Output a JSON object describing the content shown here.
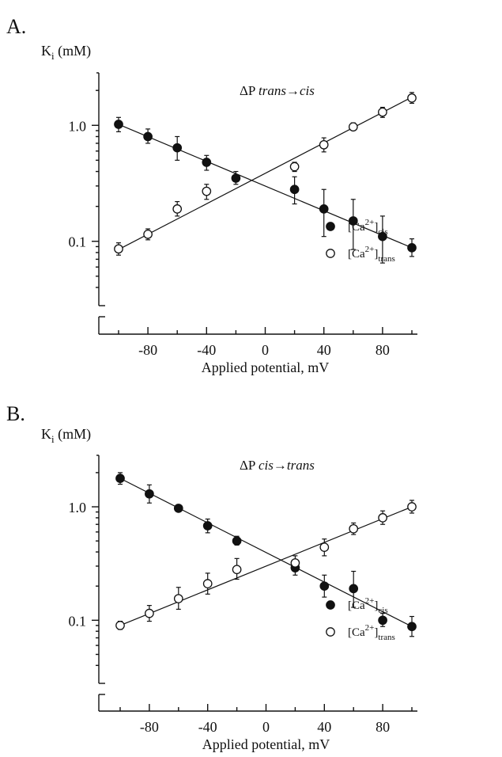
{
  "chart_data": [
    {
      "type": "scatter",
      "panel_label": "A.",
      "ylabel_main": "K",
      "ylabel_sub": "i",
      "ylabel_unit": "(mM)",
      "xlabel": "Applied potential, mV",
      "title": "ΔP trans→cis",
      "title_prefix": "ΔP ",
      "title_italic": "trans→cis",
      "yscale": "log",
      "ylim": [
        0.0316,
        2.5
      ],
      "xlim": [
        -110,
        110
      ],
      "xticks": [
        -80,
        -40,
        0,
        40,
        80
      ],
      "xtick_labels": [
        "-80",
        "-40",
        "0",
        "40",
        "80"
      ],
      "yticks": [
        1.0,
        0.1
      ],
      "ytick_labels": [
        "1.0",
        "0.1"
      ],
      "legend_position": "lower-right",
      "series": [
        {
          "key": "cis",
          "legend_base": "[Ca",
          "legend_sup": "2+",
          "legend_close": "]",
          "legend_sub": "cis",
          "marker": "filled-circle",
          "x": [
            -100,
            -80,
            -60,
            -40,
            -20,
            20,
            40,
            60,
            80,
            100
          ],
          "y": [
            1.02,
            0.8,
            0.64,
            0.48,
            0.35,
            0.28,
            0.19,
            0.15,
            0.11,
            0.088
          ],
          "err_lo": [
            0.88,
            0.7,
            0.5,
            0.41,
            0.31,
            0.21,
            0.11,
            0.085,
            0.065,
            0.074
          ],
          "err_hi": [
            1.17,
            0.93,
            0.8,
            0.55,
            0.4,
            0.36,
            0.28,
            0.23,
            0.165,
            0.105
          ],
          "fit": [
            [
              -100,
              1.02
            ],
            [
              100,
              0.088
            ]
          ]
        },
        {
          "key": "trans",
          "legend_base": "[Ca",
          "legend_sup": "2+",
          "legend_close": "]",
          "legend_sub": "trans",
          "marker": "open-circle",
          "x": [
            -100,
            -80,
            -60,
            -40,
            20,
            40,
            60,
            80,
            100
          ],
          "y": [
            0.086,
            0.115,
            0.19,
            0.27,
            0.44,
            0.68,
            0.97,
            1.3,
            1.72
          ],
          "err_lo": [
            0.076,
            0.103,
            0.165,
            0.23,
            0.4,
            0.59,
            0.91,
            1.17,
            1.55
          ],
          "err_hi": [
            0.097,
            0.128,
            0.22,
            0.31,
            0.48,
            0.78,
            1.05,
            1.43,
            1.92
          ],
          "fit": [
            [
              -100,
              0.085
            ],
            [
              100,
              1.75
            ]
          ]
        }
      ]
    },
    {
      "type": "scatter",
      "panel_label": "B.",
      "ylabel_main": "K",
      "ylabel_sub": "i",
      "ylabel_unit": "(mM)",
      "xlabel": "Applied potential, mV",
      "title": "ΔP cis→trans",
      "title_prefix": "ΔP ",
      "title_italic": "cis→trans",
      "yscale": "log",
      "ylim": [
        0.0316,
        2.5
      ],
      "xlim": [
        -110,
        110
      ],
      "xticks": [
        -80,
        -40,
        0,
        40,
        80
      ],
      "xtick_labels": [
        "-80",
        "-40",
        "0",
        "40",
        "80"
      ],
      "yticks": [
        1.0,
        0.1
      ],
      "ytick_labels": [
        "1.0",
        "0.1"
      ],
      "legend_position": "lower-right",
      "series": [
        {
          "key": "cis",
          "legend_base": "[Ca",
          "legend_sup": "2+",
          "legend_close": "]",
          "legend_sub": "cis",
          "marker": "filled-circle",
          "x": [
            -100,
            -80,
            -60,
            -40,
            -20,
            20,
            40,
            60,
            80,
            100
          ],
          "y": [
            1.78,
            1.3,
            0.97,
            0.68,
            0.5,
            0.29,
            0.2,
            0.19,
            0.1,
            0.088
          ],
          "err_lo": [
            1.58,
            1.08,
            0.92,
            0.59,
            0.46,
            0.25,
            0.16,
            0.13,
            0.088,
            0.072
          ],
          "err_hi": [
            2.0,
            1.56,
            1.03,
            0.78,
            0.55,
            0.34,
            0.25,
            0.27,
            0.115,
            0.108
          ],
          "fit": [
            [
              -100,
              1.78
            ],
            [
              100,
              0.088
            ]
          ]
        },
        {
          "key": "trans",
          "legend_base": "[Ca",
          "legend_sup": "2+",
          "legend_close": "]",
          "legend_sub": "trans",
          "marker": "open-circle",
          "x": [
            -100,
            -80,
            -60,
            -40,
            -20,
            20,
            40,
            60,
            80,
            100
          ],
          "y": [
            0.09,
            0.115,
            0.155,
            0.21,
            0.28,
            0.32,
            0.44,
            0.64,
            0.8,
            1.0
          ],
          "err_lo": [
            0.083,
            0.098,
            0.125,
            0.17,
            0.23,
            0.28,
            0.37,
            0.57,
            0.7,
            0.88
          ],
          "err_hi": [
            0.098,
            0.135,
            0.195,
            0.26,
            0.35,
            0.37,
            0.52,
            0.72,
            0.92,
            1.14
          ],
          "fit": [
            [
              -100,
              0.09
            ],
            [
              100,
              1.0
            ]
          ]
        }
      ]
    }
  ]
}
